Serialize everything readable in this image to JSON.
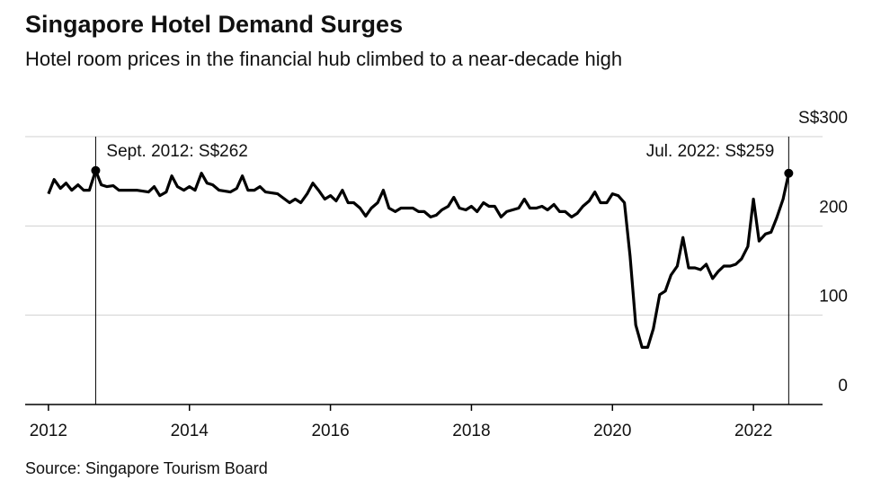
{
  "chart_data": {
    "type": "line",
    "title": "Singapore Hotel Demand Surges",
    "subtitle": "Hotel room prices in the financial hub climbed to a near-decade high",
    "source": "Source: Singapore Tourism Board",
    "x": [
      2012.0,
      2012.08,
      2012.17,
      2012.25,
      2012.33,
      2012.42,
      2012.5,
      2012.58,
      2012.67,
      2012.75,
      2012.83,
      2012.92,
      2013.0,
      2013.25,
      2013.42,
      2013.5,
      2013.58,
      2013.67,
      2013.75,
      2013.83,
      2013.92,
      2014.0,
      2014.08,
      2014.17,
      2014.25,
      2014.33,
      2014.42,
      2014.58,
      2014.67,
      2014.75,
      2014.83,
      2014.92,
      2015.0,
      2015.08,
      2015.25,
      2015.42,
      2015.5,
      2015.58,
      2015.67,
      2015.75,
      2015.83,
      2015.92,
      2016.0,
      2016.08,
      2016.17,
      2016.25,
      2016.33,
      2016.42,
      2016.5,
      2016.58,
      2016.67,
      2016.75,
      2016.83,
      2016.92,
      2017.0,
      2017.17,
      2017.25,
      2017.33,
      2017.42,
      2017.5,
      2017.58,
      2017.67,
      2017.75,
      2017.83,
      2017.92,
      2018.0,
      2018.08,
      2018.17,
      2018.25,
      2018.33,
      2018.42,
      2018.5,
      2018.67,
      2018.75,
      2018.83,
      2018.92,
      2019.0,
      2019.08,
      2019.17,
      2019.25,
      2019.33,
      2019.42,
      2019.5,
      2019.58,
      2019.67,
      2019.75,
      2019.83,
      2019.92,
      2020.0,
      2020.08,
      2020.17,
      2020.25,
      2020.33,
      2020.42,
      2020.5,
      2020.58,
      2020.67,
      2020.75,
      2020.83,
      2020.92,
      2021.0,
      2021.08,
      2021.17,
      2021.25,
      2021.33,
      2021.42,
      2021.5,
      2021.58,
      2021.67,
      2021.75,
      2021.83,
      2021.92,
      2022.0,
      2022.08,
      2022.17,
      2022.25,
      2022.33,
      2022.42,
      2022.5
    ],
    "series": [
      {
        "name": "Hotel room price",
        "color": "#000000",
        "values": [
          236,
          252,
          242,
          248,
          240,
          246,
          240,
          240,
          262,
          246,
          244,
          245,
          240,
          240,
          238,
          244,
          234,
          238,
          256,
          244,
          240,
          244,
          240,
          259,
          248,
          246,
          240,
          238,
          242,
          256,
          240,
          240,
          244,
          238,
          236,
          226,
          230,
          226,
          236,
          248,
          240,
          230,
          234,
          228,
          240,
          226,
          226,
          220,
          211,
          220,
          226,
          240,
          220,
          216,
          220,
          220,
          216,
          216,
          210,
          212,
          218,
          222,
          232,
          220,
          218,
          222,
          216,
          226,
          222,
          222,
          210,
          216,
          220,
          230,
          220,
          220,
          222,
          218,
          224,
          216,
          216,
          210,
          214,
          222,
          228,
          238,
          226,
          226,
          236,
          234,
          226,
          166,
          89,
          64,
          64,
          85,
          123,
          127,
          145,
          155,
          187,
          153,
          153,
          151,
          157,
          141,
          149,
          155,
          155,
          157,
          163,
          177,
          230,
          183,
          191,
          193,
          209,
          230,
          259
        ]
      }
    ],
    "annotations": [
      {
        "text": "Sept. 2012: S$262",
        "x": 2012.67,
        "y": 262
      },
      {
        "text": "Jul. 2022: S$259",
        "x": 2022.5,
        "y": 259
      }
    ],
    "xlim": [
      2011.67,
      2022.98
    ],
    "xticks": [
      2012,
      2014,
      2016,
      2018,
      2020,
      2022
    ],
    "ylim": [
      0,
      300
    ],
    "yticks": [
      0,
      100,
      200,
      {
        "value": 300,
        "label": "S$300"
      }
    ],
    "grid": true
  }
}
